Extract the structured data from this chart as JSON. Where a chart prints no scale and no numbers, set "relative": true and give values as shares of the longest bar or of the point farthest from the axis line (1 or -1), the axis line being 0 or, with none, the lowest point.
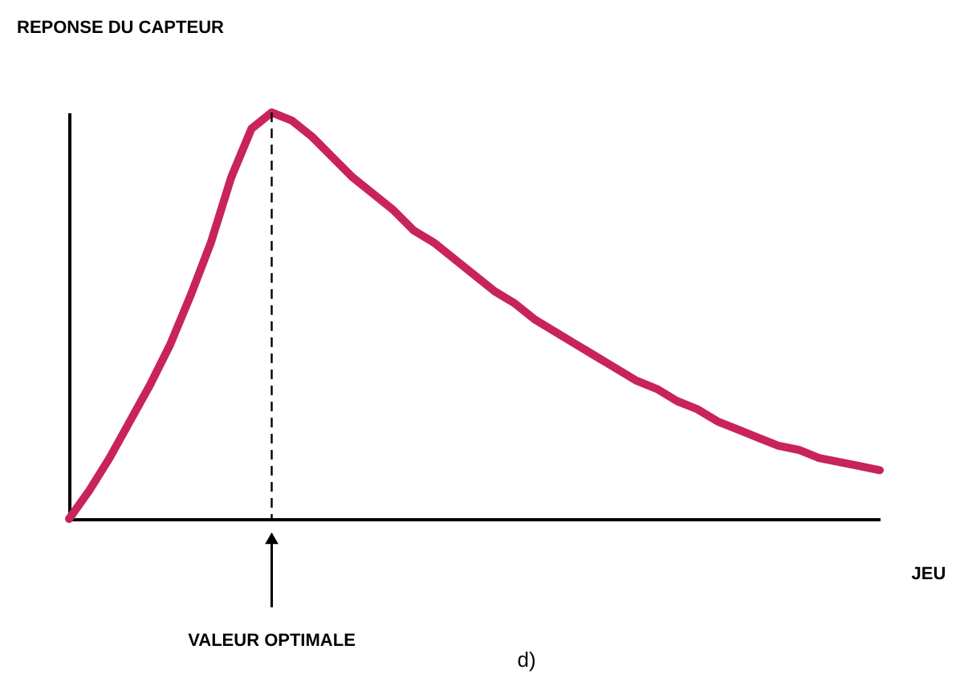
{
  "chart_data": {
    "type": "line",
    "relative": true,
    "xlabel": "JEU",
    "ylabel": "REPONSE DU CAPTEUR",
    "categories": [
      null,
      null,
      null,
      null,
      null,
      null,
      null,
      null,
      null,
      null,
      null,
      null,
      null,
      null,
      null,
      null,
      null,
      null,
      null,
      null,
      null,
      null,
      null,
      null,
      null,
      null,
      null,
      null,
      null,
      null,
      null,
      null,
      null,
      null,
      null,
      null,
      null,
      null,
      null,
      null,
      null
    ],
    "series": [
      {
        "color": "#c8245a",
        "values": [
          0,
          0.07,
          0.15,
          0.24,
          0.33,
          0.43,
          0.55,
          0.68,
          0.84,
          0.96,
          1,
          0.98,
          0.94,
          0.89,
          0.84,
          0.8,
          0.76,
          0.71,
          0.68,
          0.64,
          0.6,
          0.56,
          0.53,
          0.49,
          0.46,
          0.43,
          0.4,
          0.37,
          0.34,
          0.32,
          0.29,
          0.27,
          0.24,
          0.22,
          0.2,
          0.18,
          0.17,
          0.15,
          0.14,
          0.13,
          0.12
        ]
      }
    ],
    "annotations": [
      "VALEUR OPTIMALE",
      "d)"
    ],
    "grid": false
  }
}
